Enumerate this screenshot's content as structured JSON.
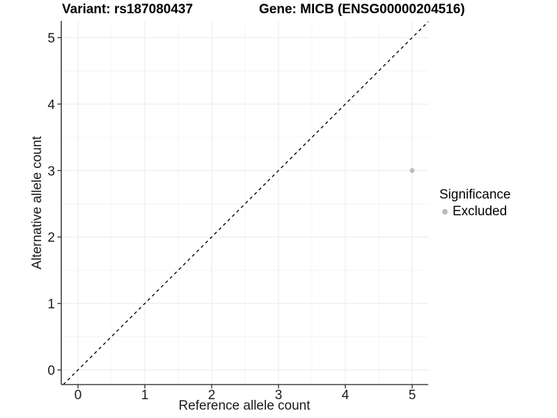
{
  "titles": {
    "variant": "Variant: rs187080437",
    "gene": "Gene: MICB (ENSG00000204516)"
  },
  "chart_data": {
    "type": "scatter",
    "title": "Variant: rs187080437 | Gene: MICB (ENSG00000204516)",
    "xlabel": "Reference allele count",
    "ylabel": "Alternative allele count",
    "xlim": [
      -0.25,
      5.24
    ],
    "ylim": [
      -0.22,
      5.25
    ],
    "xticks": [
      0,
      1,
      2,
      3,
      4,
      5
    ],
    "yticks": [
      0,
      1,
      2,
      3,
      4,
      5
    ],
    "grid": {
      "major": true,
      "minor": true
    },
    "points": [
      {
        "x": 5,
        "y": 3,
        "significance": "Excluded"
      }
    ],
    "identity_line": {
      "style": "dashed",
      "slope": 1,
      "intercept": 0,
      "color": "#000000"
    },
    "legend": {
      "title": "Significance",
      "position": "right",
      "items": [
        {
          "label": "Excluded",
          "color": "#bdbdbd"
        }
      ]
    }
  },
  "colors": {
    "background": "#ffffff",
    "grid_major": "#e9e9e9",
    "grid_minor": "#f4f4f4",
    "axis": "#404040",
    "tick": "#333333",
    "text": "#1a1a1a",
    "point": "#bdbdbd"
  }
}
